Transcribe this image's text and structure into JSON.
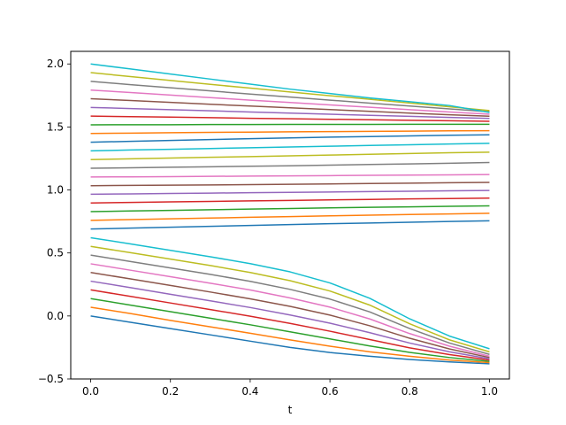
{
  "chart_data": {
    "type": "line",
    "xlabel": "t",
    "ylabel": "",
    "xlim": [
      -0.05,
      1.05
    ],
    "ylim": [
      -0.5,
      2.1
    ],
    "xticks": [
      0.0,
      0.2,
      0.4,
      0.6,
      0.8,
      1.0
    ],
    "yticks": [
      -0.5,
      0.0,
      0.5,
      1.0,
      1.5,
      2.0
    ],
    "xtick_labels": [
      "0.0",
      "0.2",
      "0.4",
      "0.6",
      "0.8",
      "1.0"
    ],
    "ytick_labels": [
      "−0.5",
      "0.0",
      "0.5",
      "1.0",
      "1.5",
      "2.0"
    ],
    "grid": false,
    "legend": "none",
    "x": [
      0.0,
      0.1,
      0.2,
      0.3,
      0.4,
      0.5,
      0.6,
      0.7,
      0.8,
      0.9,
      1.0
    ],
    "colors": [
      "#1f77b4",
      "#ff7f0e",
      "#2ca02c",
      "#d62728",
      "#9467bd",
      "#8c564b",
      "#e377c2",
      "#7f7f7f",
      "#bcbd22",
      "#17becf"
    ],
    "series": [
      {
        "values": [
          0.0,
          -0.05,
          -0.1,
          -0.15,
          -0.2,
          -0.25,
          -0.29,
          -0.32,
          -0.345,
          -0.365,
          -0.38
        ]
      },
      {
        "values": [
          0.069,
          0.019,
          -0.035,
          -0.086,
          -0.137,
          -0.19,
          -0.24,
          -0.285,
          -0.32,
          -0.35,
          -0.37
        ]
      },
      {
        "values": [
          0.138,
          0.086,
          0.034,
          -0.018,
          -0.07,
          -0.126,
          -0.182,
          -0.238,
          -0.289,
          -0.33,
          -0.36
        ]
      },
      {
        "values": [
          0.207,
          0.155,
          0.103,
          0.051,
          -0.002,
          -0.059,
          -0.121,
          -0.187,
          -0.253,
          -0.307,
          -0.35
        ]
      },
      {
        "values": [
          0.276,
          0.225,
          0.172,
          0.12,
          0.067,
          0.008,
          -0.057,
          -0.133,
          -0.215,
          -0.285,
          -0.34
        ]
      },
      {
        "values": [
          0.345,
          0.294,
          0.242,
          0.19,
          0.136,
          0.076,
          0.007,
          -0.078,
          -0.177,
          -0.262,
          -0.33
        ]
      },
      {
        "values": [
          0.414,
          0.363,
          0.312,
          0.26,
          0.206,
          0.143,
          0.07,
          -0.024,
          -0.14,
          -0.24,
          -0.32
        ]
      },
      {
        "values": [
          0.483,
          0.432,
          0.381,
          0.33,
          0.275,
          0.211,
          0.134,
          0.032,
          -0.1,
          -0.215,
          -0.305
        ]
      },
      {
        "values": [
          0.552,
          0.502,
          0.451,
          0.4,
          0.345,
          0.28,
          0.198,
          0.086,
          -0.062,
          -0.19,
          -0.285
        ]
      },
      {
        "values": [
          0.621,
          0.572,
          0.521,
          0.47,
          0.415,
          0.35,
          0.262,
          0.14,
          -0.023,
          -0.16,
          -0.26
        ]
      },
      {
        "values": [
          0.69,
          0.697,
          0.704,
          0.711,
          0.718,
          0.725,
          0.732,
          0.738,
          0.744,
          0.75,
          0.755
        ]
      },
      {
        "values": [
          0.759,
          0.765,
          0.771,
          0.777,
          0.783,
          0.789,
          0.795,
          0.8,
          0.805,
          0.81,
          0.815
        ]
      },
      {
        "values": [
          0.828,
          0.833,
          0.838,
          0.843,
          0.848,
          0.853,
          0.858,
          0.862,
          0.866,
          0.87,
          0.874
        ]
      },
      {
        "values": [
          0.897,
          0.901,
          0.905,
          0.909,
          0.913,
          0.917,
          0.921,
          0.925,
          0.929,
          0.932,
          0.935
        ]
      },
      {
        "values": [
          0.966,
          0.969,
          0.972,
          0.975,
          0.978,
          0.981,
          0.984,
          0.987,
          0.99,
          0.993,
          0.996
        ]
      },
      {
        "values": [
          1.034,
          1.036,
          1.038,
          1.04,
          1.042,
          1.045,
          1.048,
          1.051,
          1.054,
          1.057,
          1.06
        ]
      },
      {
        "values": [
          1.103,
          1.104,
          1.106,
          1.108,
          1.11,
          1.112,
          1.114,
          1.116,
          1.118,
          1.12,
          1.122
        ]
      },
      {
        "values": [
          1.172,
          1.176,
          1.18,
          1.184,
          1.188,
          1.192,
          1.197,
          1.202,
          1.207,
          1.212,
          1.218
        ]
      },
      {
        "values": [
          1.241,
          1.247,
          1.253,
          1.259,
          1.265,
          1.271,
          1.277,
          1.283,
          1.289,
          1.295,
          1.3
        ]
      },
      {
        "values": [
          1.31,
          1.317,
          1.323,
          1.329,
          1.335,
          1.341,
          1.347,
          1.353,
          1.359,
          1.365,
          1.37
        ]
      },
      {
        "values": [
          1.379,
          1.386,
          1.393,
          1.4,
          1.407,
          1.413,
          1.419,
          1.424,
          1.429,
          1.434,
          1.438
        ]
      },
      {
        "values": [
          1.448,
          1.451,
          1.454,
          1.457,
          1.459,
          1.461,
          1.463,
          1.465,
          1.467,
          1.469,
          1.47
        ]
      },
      {
        "values": [
          1.517,
          1.518,
          1.518,
          1.519,
          1.519,
          1.52,
          1.52,
          1.52,
          1.521,
          1.521,
          1.521
        ]
      },
      {
        "values": [
          1.586,
          1.582,
          1.578,
          1.574,
          1.569,
          1.565,
          1.561,
          1.557,
          1.553,
          1.549,
          1.545
        ]
      },
      {
        "values": [
          1.655,
          1.646,
          1.637,
          1.628,
          1.619,
          1.61,
          1.601,
          1.592,
          1.584,
          1.576,
          1.568
        ]
      },
      {
        "values": [
          1.724,
          1.71,
          1.695,
          1.68,
          1.666,
          1.652,
          1.638,
          1.624,
          1.61,
          1.597,
          1.585
        ]
      },
      {
        "values": [
          1.793,
          1.773,
          1.753,
          1.733,
          1.713,
          1.694,
          1.675,
          1.656,
          1.637,
          1.619,
          1.601
        ]
      },
      {
        "values": [
          1.862,
          1.836,
          1.811,
          1.786,
          1.761,
          1.737,
          1.713,
          1.689,
          1.666,
          1.643,
          1.62
        ]
      },
      {
        "values": [
          1.931,
          1.9,
          1.869,
          1.838,
          1.808,
          1.778,
          1.748,
          1.72,
          1.69,
          1.66,
          1.63
        ]
      },
      {
        "values": [
          2.0,
          1.96,
          1.92,
          1.88,
          1.84,
          1.8,
          1.765,
          1.73,
          1.7,
          1.67,
          1.615
        ]
      }
    ]
  }
}
